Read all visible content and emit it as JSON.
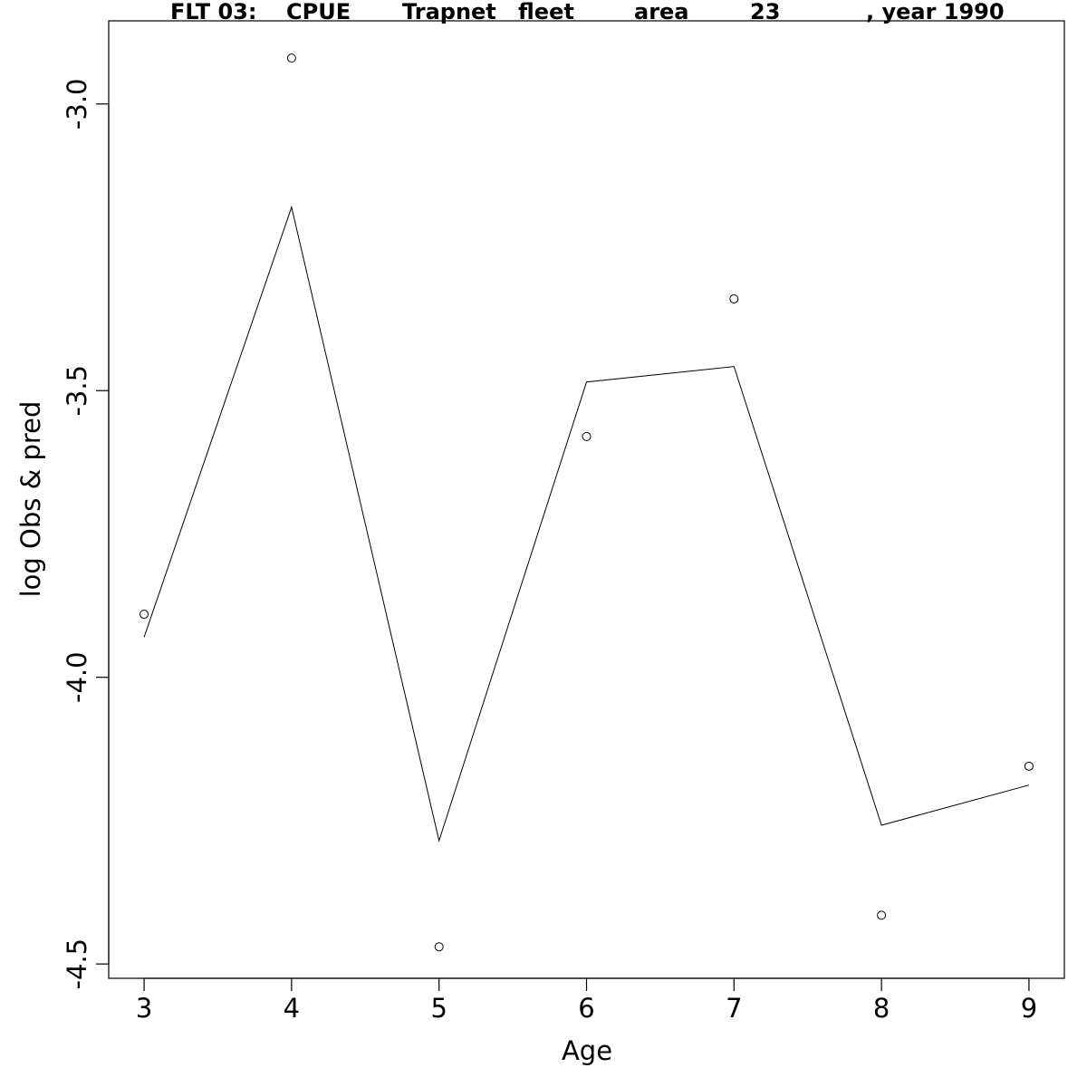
{
  "chart_data": {
    "type": "line",
    "title_parts": [
      "FLT 03:",
      "CPUE",
      "Trapnet",
      "fleet",
      "area",
      "23",
      ", year 1990"
    ],
    "xlabel": "Age",
    "ylabel": "log Obs & pred",
    "xlim": [
      2.76,
      9.24
    ],
    "ylim": [
      -4.525,
      -2.855
    ],
    "x_ticks": [
      3,
      4,
      5,
      6,
      7,
      8,
      9
    ],
    "x_tick_labels": [
      "3",
      "4",
      "5",
      "6",
      "7",
      "8",
      "9"
    ],
    "y_ticks": [
      -3.0,
      -3.5,
      -4.0,
      -4.5
    ],
    "y_tick_labels": [
      "-3.0",
      "-3.5",
      "-4.0",
      "-4.5"
    ],
    "grid": false,
    "series": [
      {
        "kind": "points",
        "marker": "open-circle",
        "x": [
          3,
          4,
          5,
          6,
          7,
          8,
          9
        ],
        "y": [
          -3.89,
          -2.92,
          -4.47,
          -3.58,
          -3.34,
          -4.415,
          -4.155
        ]
      },
      {
        "kind": "line",
        "x": [
          3,
          4,
          5,
          6,
          7,
          8,
          9
        ],
        "y": [
          -3.93,
          -3.18,
          -4.285,
          -3.485,
          -3.458,
          -4.258,
          -4.188
        ]
      }
    ]
  }
}
